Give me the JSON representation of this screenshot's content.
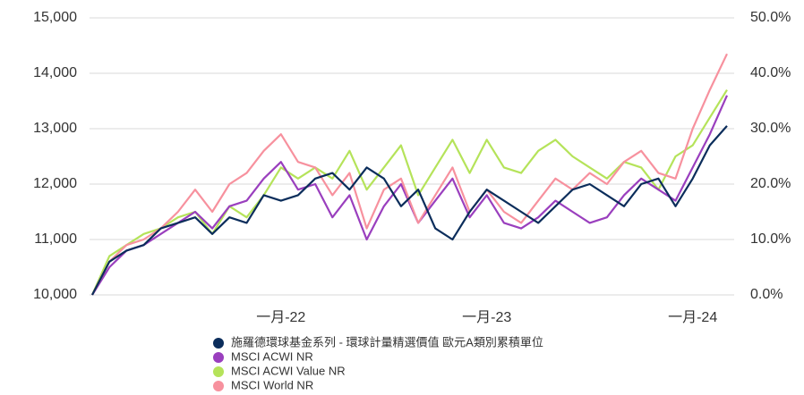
{
  "chart_data": {
    "type": "line",
    "categories": [
      null,
      null,
      null,
      null,
      null,
      null,
      null,
      null,
      null,
      null,
      null,
      "一月-22",
      null,
      null,
      null,
      null,
      null,
      null,
      null,
      null,
      null,
      null,
      null,
      "一月-23",
      null,
      null,
      null,
      null,
      null,
      null,
      null,
      null,
      null,
      null,
      null,
      "一月-24",
      null,
      null
    ],
    "series": [
      {
        "name": "施羅德環球基金系列 - 環球計量精選價值 歐元A類別累積單位",
        "color": "#0b2d5b",
        "values": [
          10000,
          10600,
          10800,
          10900,
          11200,
          11300,
          11400,
          11100,
          11400,
          11300,
          11800,
          11700,
          11800,
          12100,
          12200,
          11900,
          12300,
          12100,
          11600,
          11900,
          11200,
          11000,
          11500,
          11900,
          11700,
          11500,
          11300,
          11600,
          11900,
          12000,
          11800,
          11600,
          12000,
          12100,
          11600,
          12100,
          12700,
          13050
        ]
      },
      {
        "name": "MSCI ACWI NR",
        "color": "#9a3fbe",
        "values": [
          10000,
          10500,
          10800,
          10900,
          11100,
          11300,
          11500,
          11200,
          11600,
          11700,
          12100,
          12400,
          11900,
          12000,
          11400,
          11800,
          11000,
          11600,
          12000,
          11300,
          11700,
          12100,
          11400,
          11800,
          11300,
          11200,
          11400,
          11700,
          11500,
          11300,
          11400,
          11800,
          12100,
          11900,
          11700,
          12300,
          12900,
          13600
        ]
      },
      {
        "name": "MSCI ACWI Value NR",
        "color": "#b5e35a",
        "values": [
          10000,
          10700,
          10900,
          11100,
          11200,
          11400,
          11500,
          11100,
          11600,
          11400,
          11800,
          12300,
          12100,
          12300,
          12100,
          12600,
          11900,
          12300,
          12700,
          11800,
          12300,
          12800,
          12200,
          12800,
          12300,
          12200,
          12600,
          12800,
          12500,
          12300,
          12100,
          12400,
          12300,
          11900,
          12500,
          12700,
          13200,
          13700
        ]
      },
      {
        "name": "MSCI World NR",
        "color": "#f7919e",
        "values": [
          10000,
          10600,
          10900,
          11000,
          11200,
          11500,
          11900,
          11500,
          12000,
          12200,
          12600,
          12900,
          12400,
          12300,
          11800,
          12200,
          11200,
          11900,
          12100,
          11300,
          11800,
          12300,
          11500,
          11900,
          11500,
          11300,
          11700,
          12100,
          11900,
          12200,
          12000,
          12400,
          12600,
          12200,
          12100,
          13000,
          13700,
          14350
        ]
      }
    ],
    "ylim": [
      10000,
      15000
    ],
    "yticks": [
      {
        "value": 10000,
        "label": "10,000"
      },
      {
        "value": 11000,
        "label": "11,000"
      },
      {
        "value": 12000,
        "label": "12,000"
      },
      {
        "value": 13000,
        "label": "13,000"
      },
      {
        "value": 14000,
        "label": "14,000"
      },
      {
        "value": 15000,
        "label": "15,000"
      }
    ],
    "y2lim": [
      0,
      50
    ],
    "y2ticks": [
      {
        "value": 0,
        "label": "0.0%"
      },
      {
        "value": 10,
        "label": "10.0%"
      },
      {
        "value": 20,
        "label": "20.0%"
      },
      {
        "value": 30,
        "label": "30.0%"
      },
      {
        "value": 40,
        "label": "40.0%"
      },
      {
        "value": 50,
        "label": "50.0%"
      }
    ],
    "grid": true
  }
}
